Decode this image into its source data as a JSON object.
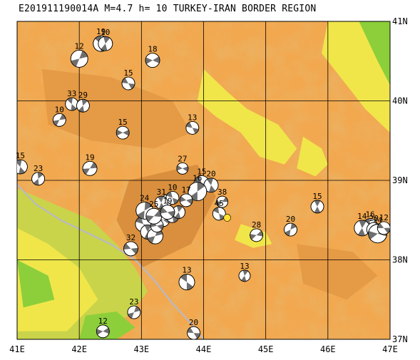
{
  "header": {
    "title": "E201911190014A M=4.7 h= 10 TURKEY-IRAN BORDER REGION"
  },
  "map": {
    "lon_range": [
      41,
      47
    ],
    "lat_range": [
      37,
      41
    ],
    "lon_ticks": [
      {
        "value": 41,
        "label": "41E"
      },
      {
        "value": 42,
        "label": "42E"
      },
      {
        "value": 43,
        "label": "43E"
      },
      {
        "value": 44,
        "label": "44E"
      },
      {
        "value": 45,
        "label": "45E"
      },
      {
        "value": 46,
        "label": "46E"
      },
      {
        "value": 47,
        "label": "47E"
      }
    ],
    "lat_ticks": [
      {
        "value": 41,
        "label": "41N"
      },
      {
        "value": 40,
        "label": "40N"
      },
      {
        "value": 39,
        "label": "39N"
      },
      {
        "value": 38,
        "label": "38N"
      },
      {
        "value": 37,
        "label": "37N"
      }
    ],
    "colors": {
      "ocean_low": "#f0e64a",
      "plain": "#f2a84f",
      "relief_dark": "#d98f3e",
      "highland": "#e59a45",
      "green": "#8ccf3a",
      "lowland": "#c9d44a",
      "river": "#b9b9c4",
      "event": "#ffe033"
    },
    "event": {
      "lon": 44.38,
      "lat": 38.53
    },
    "mechanisms": [
      {
        "label": "19",
        "lon": 42.35,
        "lat": 40.72,
        "r": 11
      },
      {
        "label": "10",
        "lon": 42.42,
        "lat": 40.72,
        "r": 10
      },
      {
        "label": "12",
        "lon": 42.0,
        "lat": 40.53,
        "r": 12
      },
      {
        "label": "18",
        "lon": 43.18,
        "lat": 40.51,
        "r": 10
      },
      {
        "label": "15",
        "lon": 42.79,
        "lat": 40.22,
        "r": 9
      },
      {
        "label": "33",
        "lon": 41.88,
        "lat": 39.96,
        "r": 9
      },
      {
        "label": "29",
        "lon": 42.06,
        "lat": 39.94,
        "r": 9
      },
      {
        "label": "10",
        "lon": 41.68,
        "lat": 39.76,
        "r": 9
      },
      {
        "label": "15",
        "lon": 42.7,
        "lat": 39.6,
        "r": 9
      },
      {
        "label": "13",
        "lon": 43.82,
        "lat": 39.66,
        "r": 9
      },
      {
        "label": "15",
        "lon": 41.05,
        "lat": 39.17,
        "r": 10
      },
      {
        "label": "23",
        "lon": 41.34,
        "lat": 39.02,
        "r": 9
      },
      {
        "label": "19",
        "lon": 42.17,
        "lat": 39.15,
        "r": 10
      },
      {
        "label": "27",
        "lon": 43.66,
        "lat": 39.15,
        "r": 8
      },
      {
        "label": "15",
        "lon": 43.97,
        "lat": 38.96,
        "r": 11
      },
      {
        "label": "20",
        "lon": 44.12,
        "lat": 38.94,
        "r": 10
      },
      {
        "label": "16",
        "lon": 43.9,
        "lat": 38.86,
        "r": 13
      },
      {
        "label": "38",
        "lon": 44.3,
        "lat": 38.73,
        "r": 8
      },
      {
        "label": "17",
        "lon": 43.72,
        "lat": 38.75,
        "r": 9
      },
      {
        "label": "10",
        "lon": 43.5,
        "lat": 38.78,
        "r": 9
      },
      {
        "label": "31",
        "lon": 43.32,
        "lat": 38.72,
        "r": 9
      },
      {
        "label": "24",
        "lon": 43.05,
        "lat": 38.62,
        "r": 12
      },
      {
        "label": "25",
        "lon": 43.2,
        "lat": 38.55,
        "r": 11
      },
      {
        "label": "19",
        "lon": 43.42,
        "lat": 38.6,
        "r": 10
      },
      {
        "label": "45",
        "lon": 44.25,
        "lat": 38.58,
        "r": 9
      },
      {
        "label": "15",
        "lon": 45.83,
        "lat": 38.67,
        "r": 9
      },
      {
        "label": "20",
        "lon": 45.4,
        "lat": 38.38,
        "r": 9
      },
      {
        "label": "28",
        "lon": 44.85,
        "lat": 38.31,
        "r": 9
      },
      {
        "label": "32",
        "lon": 42.83,
        "lat": 38.14,
        "r": 10
      },
      {
        "label": "16",
        "lon": 46.68,
        "lat": 38.43,
        "r": 10
      },
      {
        "label": "14",
        "lon": 46.55,
        "lat": 38.4,
        "r": 11
      },
      {
        "label": "20",
        "lon": 46.74,
        "lat": 38.38,
        "r": 10
      },
      {
        "label": "24",
        "lon": 46.8,
        "lat": 38.33,
        "r": 13
      },
      {
        "label": "12",
        "lon": 46.9,
        "lat": 38.4,
        "r": 9
      },
      {
        "label": "13",
        "lon": 43.73,
        "lat": 37.72,
        "r": 11
      },
      {
        "label": "13",
        "lon": 44.66,
        "lat": 37.8,
        "r": 8
      },
      {
        "label": "23",
        "lon": 42.88,
        "lat": 37.34,
        "r": 9
      },
      {
        "label": "12",
        "lon": 42.38,
        "lat": 37.1,
        "r": 9
      },
      {
        "label": "20",
        "lon": 43.84,
        "lat": 37.08,
        "r": 9
      }
    ],
    "cluster_extra": [
      {
        "lon": 43.03,
        "lat": 38.45,
        "r": 11
      },
      {
        "lon": 43.1,
        "lat": 38.35,
        "r": 10
      },
      {
        "lon": 43.22,
        "lat": 38.3,
        "r": 11
      },
      {
        "lon": 43.35,
        "lat": 38.5,
        "r": 9
      },
      {
        "lon": 43.5,
        "lat": 38.55,
        "r": 9
      },
      {
        "lon": 43.6,
        "lat": 38.6,
        "r": 9
      },
      {
        "lon": 43.42,
        "lat": 38.75,
        "r": 8
      },
      {
        "lon": 43.25,
        "lat": 38.43,
        "r": 9
      }
    ]
  }
}
